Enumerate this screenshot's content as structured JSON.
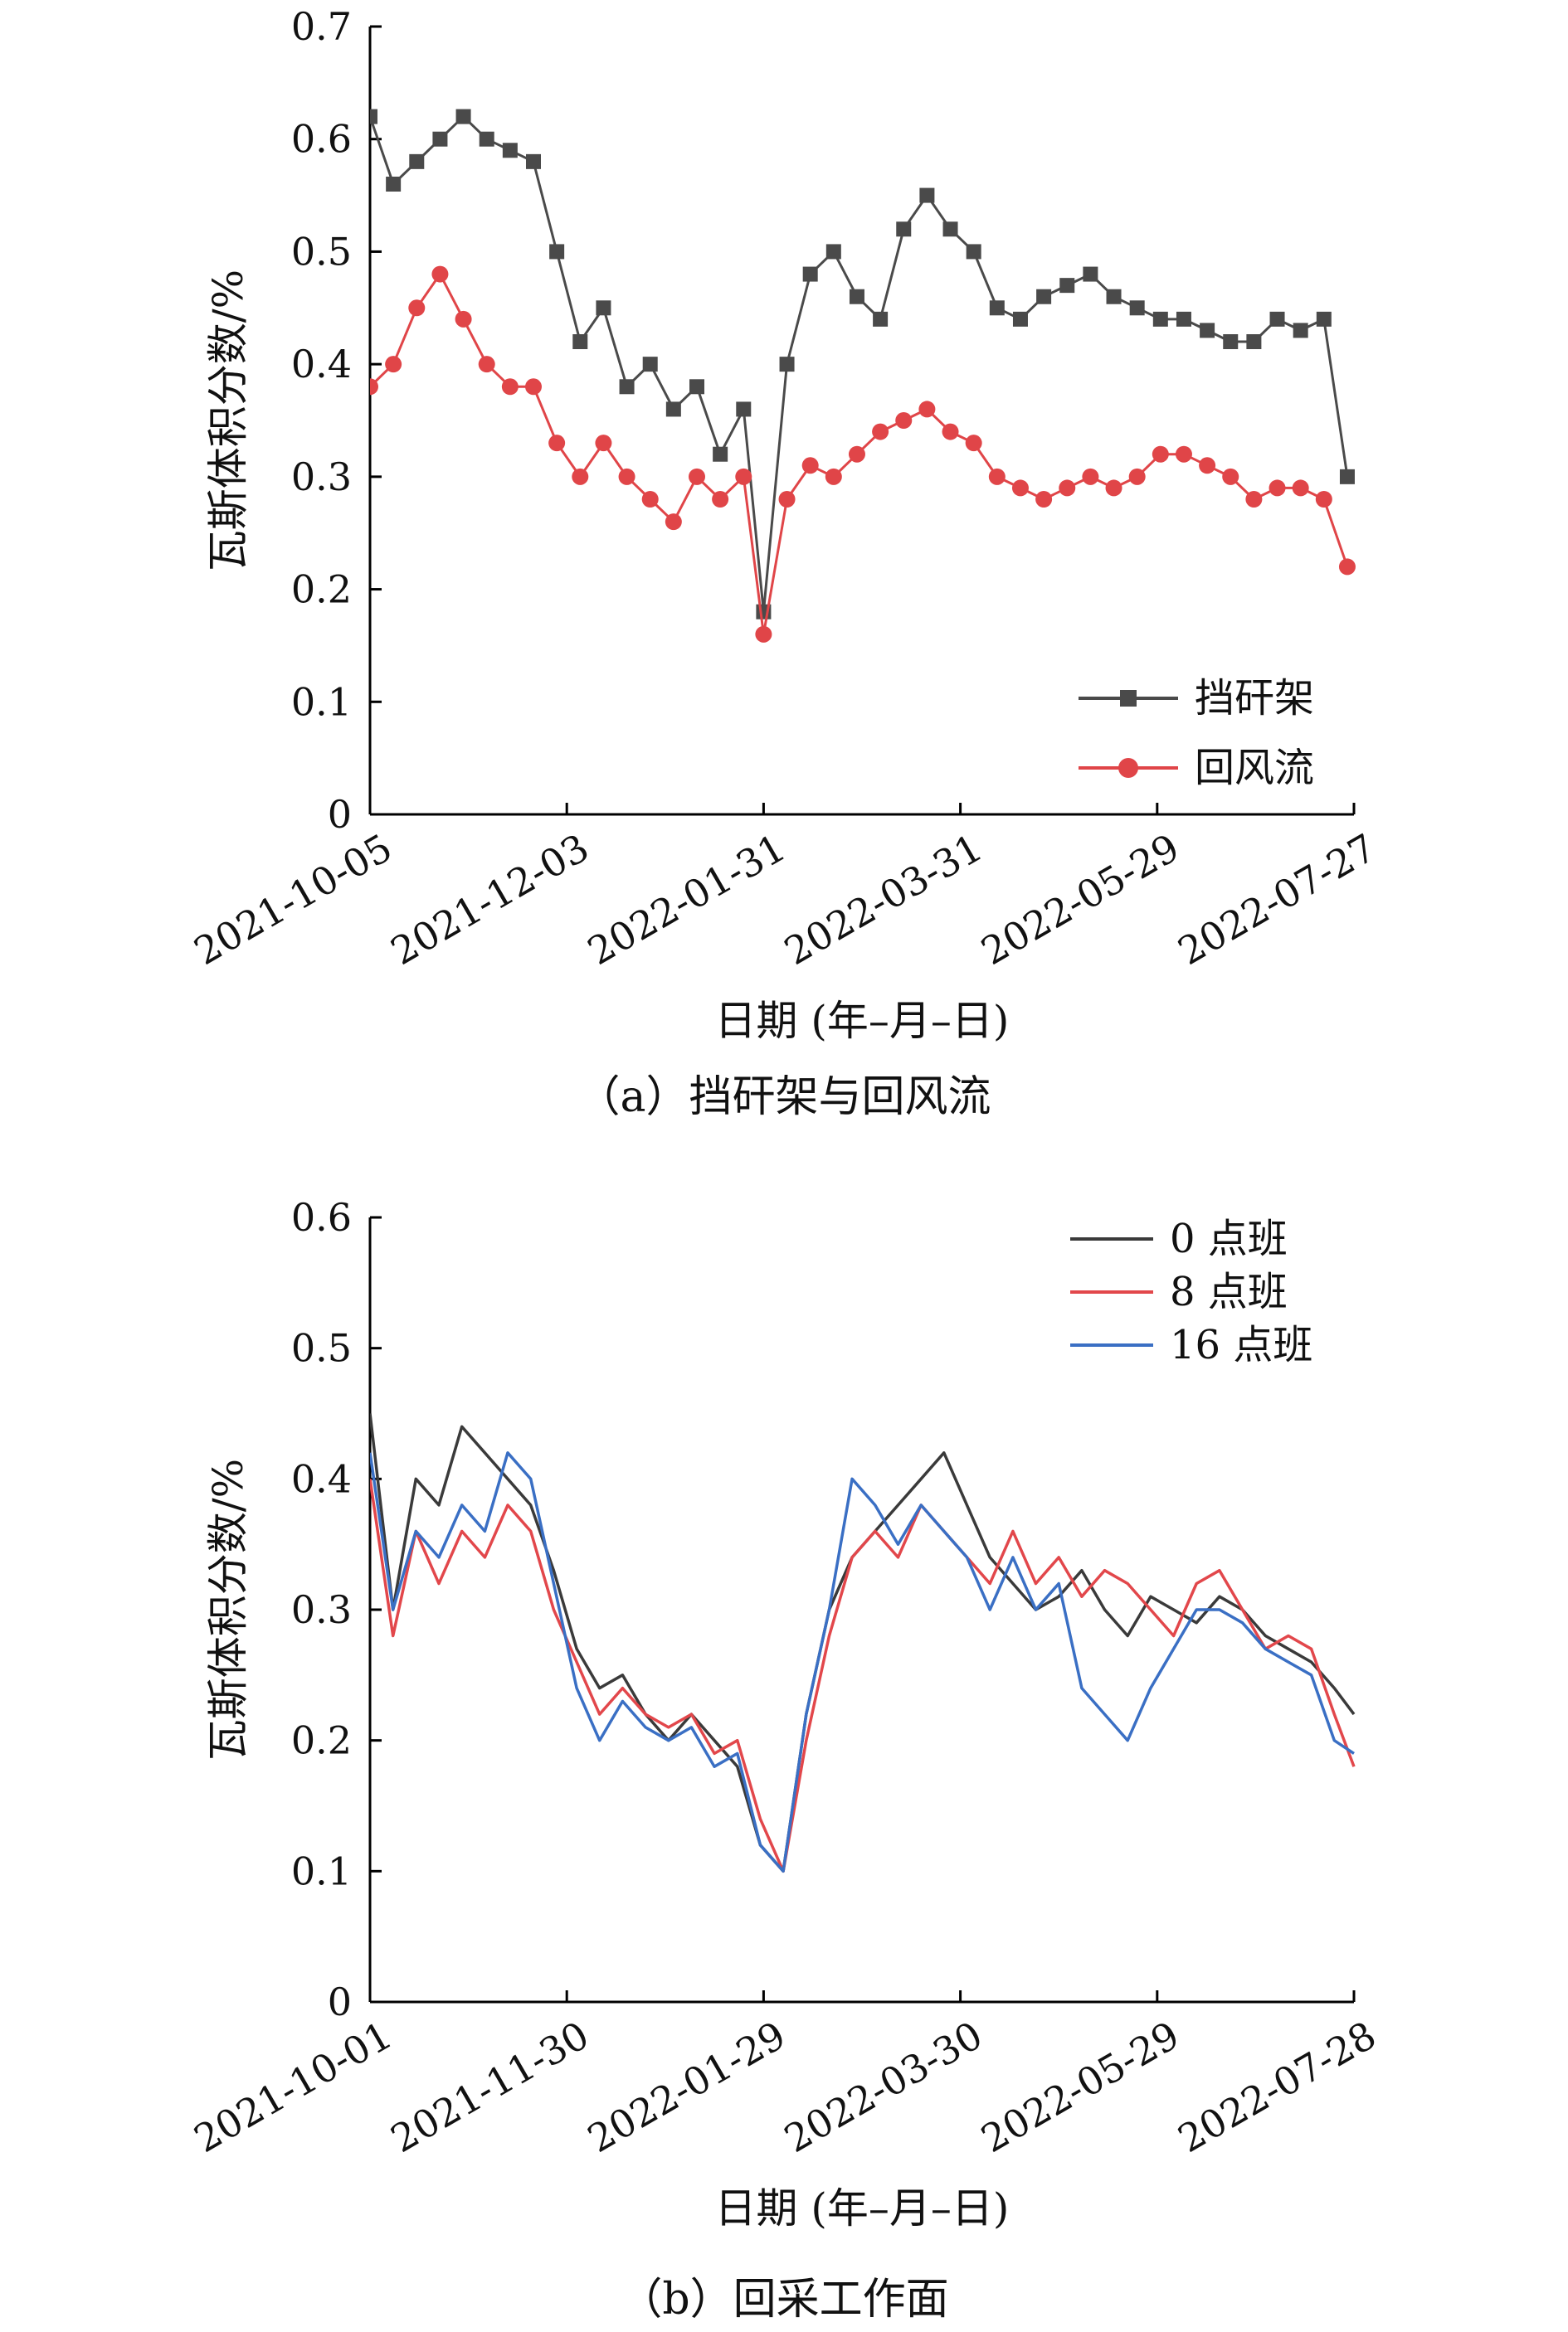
{
  "chart_data": [
    {
      "type": "scatter",
      "panel_caption": "（a）挡矸架与回风流",
      "xlabel": "日期 (年–月–日)",
      "ylabel": "瓦斯体积分数/%",
      "x_type": "date",
      "xlim": [
        "2021-10-05",
        "2022-07-27"
      ],
      "ylim": [
        0,
        0.7
      ],
      "yticks": [
        "0",
        "0.1",
        "0.2",
        "0.3",
        "0.4",
        "0.5",
        "0.6",
        "0.7"
      ],
      "xticks": [
        "2021-10-05",
        "2021-12-03",
        "2022-01-31",
        "2022-03-31",
        "2022-05-29",
        "2022-07-27"
      ],
      "grid": false,
      "legend_position": "bottom-right",
      "series": [
        {
          "name": "挡矸架",
          "color": "#4a4a4a",
          "marker": "square",
          "x": [
            "2021-10-05",
            "2021-10-12",
            "2021-10-19",
            "2021-10-26",
            "2021-11-02",
            "2021-11-09",
            "2021-11-16",
            "2021-11-23",
            "2021-11-30",
            "2021-12-07",
            "2021-12-14",
            "2021-12-21",
            "2021-12-28",
            "2022-01-04",
            "2022-01-11",
            "2022-01-18",
            "2022-01-25",
            "2022-01-31",
            "2022-02-07",
            "2022-02-14",
            "2022-02-21",
            "2022-02-28",
            "2022-03-07",
            "2022-03-14",
            "2022-03-21",
            "2022-03-28",
            "2022-04-04",
            "2022-04-11",
            "2022-04-18",
            "2022-04-25",
            "2022-05-02",
            "2022-05-09",
            "2022-05-16",
            "2022-05-23",
            "2022-05-30",
            "2022-06-06",
            "2022-06-13",
            "2022-06-20",
            "2022-06-27",
            "2022-07-04",
            "2022-07-11",
            "2022-07-18",
            "2022-07-25"
          ],
          "y": [
            0.62,
            0.56,
            0.58,
            0.6,
            0.62,
            0.6,
            0.59,
            0.58,
            0.5,
            0.42,
            0.45,
            0.38,
            0.4,
            0.36,
            0.38,
            0.32,
            0.36,
            0.18,
            0.4,
            0.48,
            0.5,
            0.46,
            0.44,
            0.52,
            0.55,
            0.52,
            0.5,
            0.45,
            0.44,
            0.46,
            0.47,
            0.48,
            0.46,
            0.45,
            0.44,
            0.44,
            0.43,
            0.42,
            0.42,
            0.44,
            0.43,
            0.44,
            0.3
          ]
        },
        {
          "name": "回风流",
          "color": "#e04548",
          "marker": "circle",
          "x": [
            "2021-10-05",
            "2021-10-12",
            "2021-10-19",
            "2021-10-26",
            "2021-11-02",
            "2021-11-09",
            "2021-11-16",
            "2021-11-23",
            "2021-11-30",
            "2021-12-07",
            "2021-12-14",
            "2021-12-21",
            "2021-12-28",
            "2022-01-04",
            "2022-01-11",
            "2022-01-18",
            "2022-01-25",
            "2022-01-31",
            "2022-02-07",
            "2022-02-14",
            "2022-02-21",
            "2022-02-28",
            "2022-03-07",
            "2022-03-14",
            "2022-03-21",
            "2022-03-28",
            "2022-04-04",
            "2022-04-11",
            "2022-04-18",
            "2022-04-25",
            "2022-05-02",
            "2022-05-09",
            "2022-05-16",
            "2022-05-23",
            "2022-05-30",
            "2022-06-06",
            "2022-06-13",
            "2022-06-20",
            "2022-06-27",
            "2022-07-04",
            "2022-07-11",
            "2022-07-18",
            "2022-07-25"
          ],
          "y": [
            0.38,
            0.4,
            0.45,
            0.48,
            0.44,
            0.4,
            0.38,
            0.38,
            0.33,
            0.3,
            0.33,
            0.3,
            0.28,
            0.26,
            0.3,
            0.28,
            0.3,
            0.16,
            0.28,
            0.31,
            0.3,
            0.32,
            0.34,
            0.35,
            0.36,
            0.34,
            0.33,
            0.3,
            0.29,
            0.28,
            0.29,
            0.3,
            0.29,
            0.3,
            0.32,
            0.32,
            0.31,
            0.3,
            0.28,
            0.29,
            0.29,
            0.28,
            0.22
          ]
        }
      ]
    },
    {
      "type": "line",
      "panel_caption": "（b）回采工作面",
      "xlabel": "日期 (年–月–日)",
      "ylabel": "瓦斯体积分数/%",
      "x_type": "date",
      "xlim": [
        "2021-10-01",
        "2022-07-28"
      ],
      "ylim": [
        0,
        0.6
      ],
      "yticks": [
        "0",
        "0.1",
        "0.2",
        "0.3",
        "0.4",
        "0.5",
        "0.6"
      ],
      "xticks": [
        "2021-10-01",
        "2021-11-30",
        "2022-01-29",
        "2022-03-30",
        "2022-05-29",
        "2022-07-28"
      ],
      "grid": false,
      "legend_position": "top-right",
      "series": [
        {
          "name": "0 点班",
          "color": "#3a3a3a",
          "x": [
            "2021-10-01",
            "2021-10-08",
            "2021-10-15",
            "2021-10-22",
            "2021-10-29",
            "2021-11-05",
            "2021-11-12",
            "2021-11-19",
            "2021-11-26",
            "2021-12-03",
            "2021-12-10",
            "2021-12-17",
            "2021-12-24",
            "2021-12-31",
            "2022-01-07",
            "2022-01-14",
            "2022-01-21",
            "2022-01-28",
            "2022-02-04",
            "2022-02-11",
            "2022-02-18",
            "2022-02-25",
            "2022-03-04",
            "2022-03-11",
            "2022-03-18",
            "2022-03-25",
            "2022-04-01",
            "2022-04-08",
            "2022-04-15",
            "2022-04-22",
            "2022-04-29",
            "2022-05-06",
            "2022-05-13",
            "2022-05-20",
            "2022-05-27",
            "2022-06-03",
            "2022-06-10",
            "2022-06-17",
            "2022-06-24",
            "2022-07-01",
            "2022-07-08",
            "2022-07-15",
            "2022-07-22",
            "2022-07-28"
          ],
          "y": [
            0.45,
            0.3,
            0.4,
            0.38,
            0.44,
            0.42,
            0.4,
            0.38,
            0.33,
            0.27,
            0.24,
            0.25,
            0.22,
            0.2,
            0.22,
            0.2,
            0.18,
            0.12,
            0.1,
            0.22,
            0.3,
            0.34,
            0.36,
            0.38,
            0.4,
            0.42,
            0.38,
            0.34,
            0.32,
            0.3,
            0.31,
            0.33,
            0.3,
            0.28,
            0.31,
            0.3,
            0.29,
            0.31,
            0.3,
            0.28,
            0.27,
            0.26,
            0.24,
            0.22
          ]
        },
        {
          "name": "8 点班",
          "color": "#e2474b",
          "x": [
            "2021-10-01",
            "2021-10-08",
            "2021-10-15",
            "2021-10-22",
            "2021-10-29",
            "2021-11-05",
            "2021-11-12",
            "2021-11-19",
            "2021-11-26",
            "2021-12-03",
            "2021-12-10",
            "2021-12-17",
            "2021-12-24",
            "2021-12-31",
            "2022-01-07",
            "2022-01-14",
            "2022-01-21",
            "2022-01-28",
            "2022-02-04",
            "2022-02-11",
            "2022-02-18",
            "2022-02-25",
            "2022-03-04",
            "2022-03-11",
            "2022-03-18",
            "2022-03-25",
            "2022-04-01",
            "2022-04-08",
            "2022-04-15",
            "2022-04-22",
            "2022-04-29",
            "2022-05-06",
            "2022-05-13",
            "2022-05-20",
            "2022-05-27",
            "2022-06-03",
            "2022-06-10",
            "2022-06-17",
            "2022-06-24",
            "2022-07-01",
            "2022-07-08",
            "2022-07-15",
            "2022-07-22",
            "2022-07-28"
          ],
          "y": [
            0.4,
            0.28,
            0.36,
            0.32,
            0.36,
            0.34,
            0.38,
            0.36,
            0.3,
            0.26,
            0.22,
            0.24,
            0.22,
            0.21,
            0.22,
            0.19,
            0.2,
            0.14,
            0.1,
            0.2,
            0.28,
            0.34,
            0.36,
            0.34,
            0.38,
            0.36,
            0.34,
            0.32,
            0.36,
            0.32,
            0.34,
            0.31,
            0.33,
            0.32,
            0.3,
            0.28,
            0.32,
            0.33,
            0.3,
            0.27,
            0.28,
            0.27,
            0.22,
            0.18
          ]
        },
        {
          "name": "16 点班",
          "color": "#3a6fc4",
          "x": [
            "2021-10-01",
            "2021-10-08",
            "2021-10-15",
            "2021-10-22",
            "2021-10-29",
            "2021-11-05",
            "2021-11-12",
            "2021-11-19",
            "2021-11-26",
            "2021-12-03",
            "2021-12-10",
            "2021-12-17",
            "2021-12-24",
            "2021-12-31",
            "2022-01-07",
            "2022-01-14",
            "2022-01-21",
            "2022-01-28",
            "2022-02-04",
            "2022-02-11",
            "2022-02-18",
            "2022-02-25",
            "2022-03-04",
            "2022-03-11",
            "2022-03-18",
            "2022-03-25",
            "2022-04-01",
            "2022-04-08",
            "2022-04-15",
            "2022-04-22",
            "2022-04-29",
            "2022-05-06",
            "2022-05-13",
            "2022-05-20",
            "2022-05-27",
            "2022-06-03",
            "2022-06-10",
            "2022-06-17",
            "2022-06-24",
            "2022-07-01",
            "2022-07-08",
            "2022-07-15",
            "2022-07-22",
            "2022-07-28"
          ],
          "y": [
            0.42,
            0.3,
            0.36,
            0.34,
            0.38,
            0.36,
            0.42,
            0.4,
            0.32,
            0.24,
            0.2,
            0.23,
            0.21,
            0.2,
            0.21,
            0.18,
            0.19,
            0.12,
            0.1,
            0.22,
            0.3,
            0.4,
            0.38,
            0.35,
            0.38,
            0.36,
            0.34,
            0.3,
            0.34,
            0.3,
            0.32,
            0.24,
            0.22,
            0.2,
            0.24,
            0.27,
            0.3,
            0.3,
            0.29,
            0.27,
            0.26,
            0.25,
            0.2,
            0.19
          ]
        }
      ]
    }
  ]
}
